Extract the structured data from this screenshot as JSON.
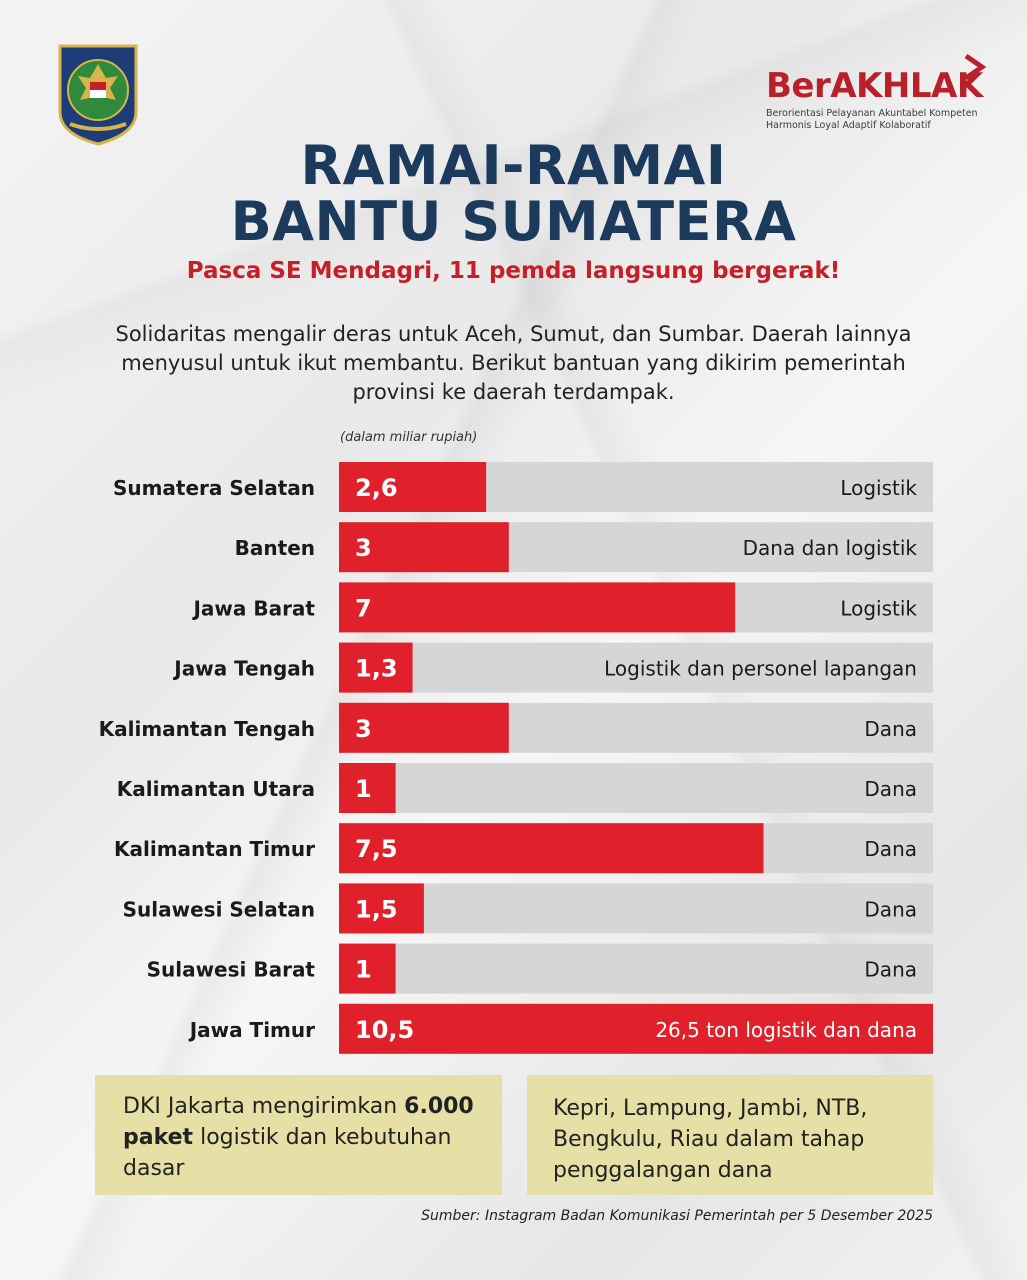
{
  "header": {
    "brand_name": "BerAKHLAK",
    "brand_tagline_1": "Berorientasi Pelayanan Akuntabel Kompeten",
    "brand_tagline_2": "Harmonis Loyal Adaptif Kolaboratif",
    "logo_icon": "garuda-emblem-icon"
  },
  "title_line1": "RAMAI-RAMAI",
  "title_line2": "BANTU SUMATERA",
  "subtitle": "Pasca SE Mendagri, 11 pemda langsung bergerak!",
  "intro": "Solidaritas mengalir deras untuk Aceh, Sumut, dan Sumbar. Daerah lainnya menyusul untuk ikut membantu. Berikut bantuan yang dikirim pemerintah provinsi ke daerah terdampak.",
  "colors": {
    "bar": "#e0202a",
    "track": "#d6d6d6",
    "title": "#1b3a5c",
    "accent": "#c51f2a",
    "note_bg": "#e6e0a6"
  },
  "chart_data": {
    "type": "bar",
    "orientation": "horizontal",
    "unit_label": "(dalam miliar rupiah)",
    "categories": [
      "Sumatera Selatan",
      "Banten",
      "Jawa Barat",
      "Jawa Tengah",
      "Kalimantan Tengah",
      "Kalimantan Utara",
      "Kalimantan Timur",
      "Sulawesi Selatan",
      "Sulawesi Barat",
      "Jawa Timur"
    ],
    "values": [
      2.6,
      3,
      7,
      1.3,
      3,
      1,
      7.5,
      1.5,
      1,
      10.5
    ],
    "value_labels": [
      "2,6",
      "3",
      "7",
      "1,3",
      "3",
      "1",
      "7,5",
      "1,5",
      "1",
      "10,5"
    ],
    "aid_types": [
      "Logistik",
      "Dana dan logistik",
      "Logistik",
      "Logistik dan personel lapangan",
      "Dana",
      "Dana",
      "Dana",
      "Dana",
      "Dana",
      "26,5 ton logistik dan dana"
    ],
    "xlim": [
      0,
      10.5
    ]
  },
  "notes": {
    "jakarta_pre": "DKI Jakarta mengirimkan",
    "jakarta_bold": "6.000 paket",
    "jakarta_post": "logistik dan kebutuhan dasar",
    "others": "Kepri, Lampung, Jambi, NTB, Bengkulu, Riau dalam tahap penggalangan dana"
  },
  "source": "Sumber: Instagram Badan Komunikasi Pemerintah per 5 Desember 2025"
}
